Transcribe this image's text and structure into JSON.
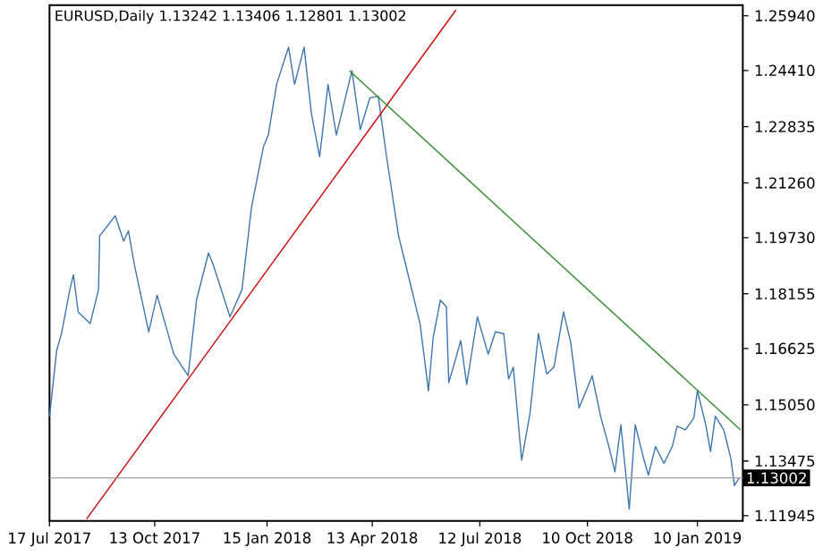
{
  "chart_data": {
    "type": "line",
    "title": "EURUSD,Daily  1.13242 1.13406 1.12801 1.13002",
    "xlim": [
      "2017-07-17",
      "2019-02-17"
    ],
    "ylim": [
      1.118,
      1.2624
    ],
    "xticks": [
      {
        "value": "2017-07-17",
        "label": "17 Jul 2017"
      },
      {
        "value": "2017-10-13",
        "label": "13 Oct 2017"
      },
      {
        "value": "2018-01-15",
        "label": "15 Jan 2018"
      },
      {
        "value": "2018-04-13",
        "label": "13 Apr 2018"
      },
      {
        "value": "2018-07-12",
        "label": "12 Jul 2018"
      },
      {
        "value": "2018-10-10",
        "label": "10 Oct 2018"
      },
      {
        "value": "2019-01-10",
        "label": "10 Jan 2019"
      }
    ],
    "yticks": [
      {
        "value": 1.2594,
        "label": "1.25940"
      },
      {
        "value": 1.2441,
        "label": "1.24410"
      },
      1.22835,
      {
        "value": 1.2126,
        "label": "1.21260"
      },
      {
        "value": 1.1973,
        "label": "1.19730"
      },
      1.18155,
      1.16625,
      {
        "value": 1.1505,
        "label": "1.15050"
      },
      1.13475,
      1.11945
    ],
    "ref_lines": [
      {
        "axis": "y",
        "value": 1.13002,
        "label": "1.13002",
        "color": "#a0a0a0"
      }
    ],
    "series": [
      {
        "color": "#3a75b0",
        "x": [
          "2017-07-17",
          "2017-07-23",
          "2017-07-27",
          "2017-08-03",
          "2017-08-06",
          "2017-08-10",
          "2017-08-20",
          "2017-08-27",
          "2017-08-28",
          "2017-09-10",
          "2017-09-17",
          "2017-09-21",
          "2017-09-26",
          "2017-10-08",
          "2017-10-15",
          "2017-10-29",
          "2017-11-10",
          "2017-11-17",
          "2017-11-27",
          "2017-12-01",
          "2017-12-15",
          "2017-12-25",
          "2018-01-02",
          "2018-01-12",
          "2018-01-16",
          "2018-01-23",
          "2018-02-02",
          "2018-02-07",
          "2018-02-15",
          "2018-02-21",
          "2018-02-28",
          "2018-03-07",
          "2018-03-14",
          "2018-03-27",
          "2018-04-03",
          "2018-04-11",
          "2018-04-18",
          "2018-04-25",
          "2018-05-05",
          "2018-05-12",
          "2018-05-23",
          "2018-05-30",
          "2018-06-03",
          "2018-06-09",
          "2018-06-14",
          "2018-06-16",
          "2018-06-21",
          "2018-06-26",
          "2018-07-01",
          "2018-07-10",
          "2018-07-19",
          "2018-07-25",
          "2018-08-01",
          "2018-08-05",
          "2018-08-09",
          "2018-08-16",
          "2018-08-23",
          "2018-08-30",
          "2018-09-06",
          "2018-09-12",
          "2018-09-20",
          "2018-09-26",
          "2018-10-03",
          "2018-10-14",
          "2018-10-21",
          "2018-10-28",
          "2018-11-02",
          "2018-11-07",
          "2018-11-14",
          "2018-11-19",
          "2018-11-26",
          "2018-11-30",
          "2018-12-06",
          "2018-12-13",
          "2018-12-20",
          "2018-12-24",
          "2018-12-31",
          "2019-01-07",
          "2019-01-10",
          "2019-01-17",
          "2019-01-21",
          "2019-01-25",
          "2019-02-01",
          "2019-02-07",
          "2019-02-10",
          "2019-02-14"
        ],
        "values": [
          1.1473,
          1.1657,
          1.1704,
          1.1827,
          1.1869,
          1.1765,
          1.1732,
          1.1827,
          1.1978,
          1.2034,
          1.1963,
          1.1992,
          1.1897,
          1.1709,
          1.1812,
          1.1647,
          1.1586,
          1.1798,
          1.193,
          1.1897,
          1.1751,
          1.1827,
          1.2058,
          1.2228,
          1.226,
          1.2402,
          1.2506,
          1.2402,
          1.2506,
          1.2322,
          1.2199,
          1.2402,
          1.226,
          1.244,
          1.2275,
          1.2364,
          1.2369,
          1.2199,
          1.1978,
          1.1883,
          1.1732,
          1.1544,
          1.1694,
          1.1798,
          1.1779,
          1.1567,
          1.1624,
          1.1685,
          1.1562,
          1.1751,
          1.1647,
          1.1709,
          1.1704,
          1.1577,
          1.161,
          1.135,
          1.1482,
          1.1704,
          1.1591,
          1.161,
          1.1765,
          1.168,
          1.1496,
          1.1586,
          1.1473,
          1.1388,
          1.1317,
          1.1449,
          1.1213,
          1.1449,
          1.1355,
          1.1308,
          1.1388,
          1.1341,
          1.1388,
          1.1445,
          1.1435,
          1.1468,
          1.1544,
          1.1449,
          1.1374,
          1.1473,
          1.1435,
          1.1355,
          1.1279,
          1.13002
        ]
      },
      {
        "color": "#cc0000",
        "x": [
          "2017-08-17",
          "2018-06-22"
        ],
        "values": [
          1.1185,
          1.261
        ]
      },
      {
        "color": "#2e8b2e",
        "x": [
          "2018-03-25",
          "2019-02-15"
        ],
        "values": [
          1.244,
          1.1435
        ]
      }
    ]
  }
}
